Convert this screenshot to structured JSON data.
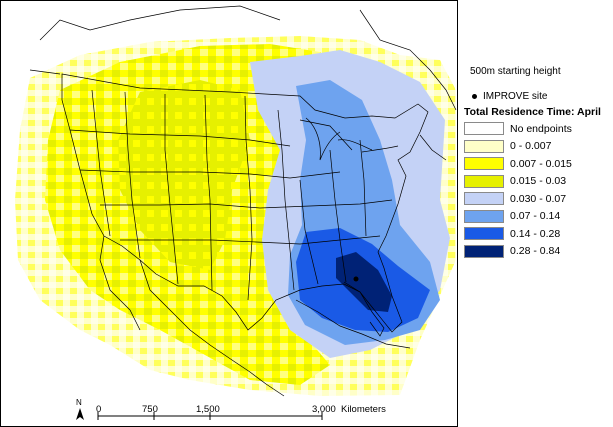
{
  "legend": {
    "height_note": "500m starting height",
    "site_label": "IMPROVE site",
    "title": "Total Residence Time: April",
    "classes": [
      {
        "label": "No endpoints",
        "color": "#ffffff"
      },
      {
        "label": "0 - 0.007",
        "color": "#ffffc8"
      },
      {
        "label": "0.007 - 0.015",
        "color": "#ffff00"
      },
      {
        "label": "0.015 - 0.03",
        "color": "#e6f000"
      },
      {
        "label": "0.030 - 0.07",
        "color": "#c4d2f6"
      },
      {
        "label": "0.07 - 0.14",
        "color": "#6ea3ef"
      },
      {
        "label": "0.14 - 0.28",
        "color": "#1a5ae6"
      },
      {
        "label": "0.28 - 0.84",
        "color": "#002276"
      }
    ]
  },
  "scalebar": {
    "ticks": [
      "0",
      "750",
      "1,500",
      "3,000"
    ],
    "unit": "Kilometers"
  },
  "north_arrow": {
    "label": "N",
    "icon": "north-arrow-icon"
  },
  "map": {
    "site_marker": "IMPROVE site",
    "background": "#ffffff",
    "boundary_color": "#000000"
  }
}
